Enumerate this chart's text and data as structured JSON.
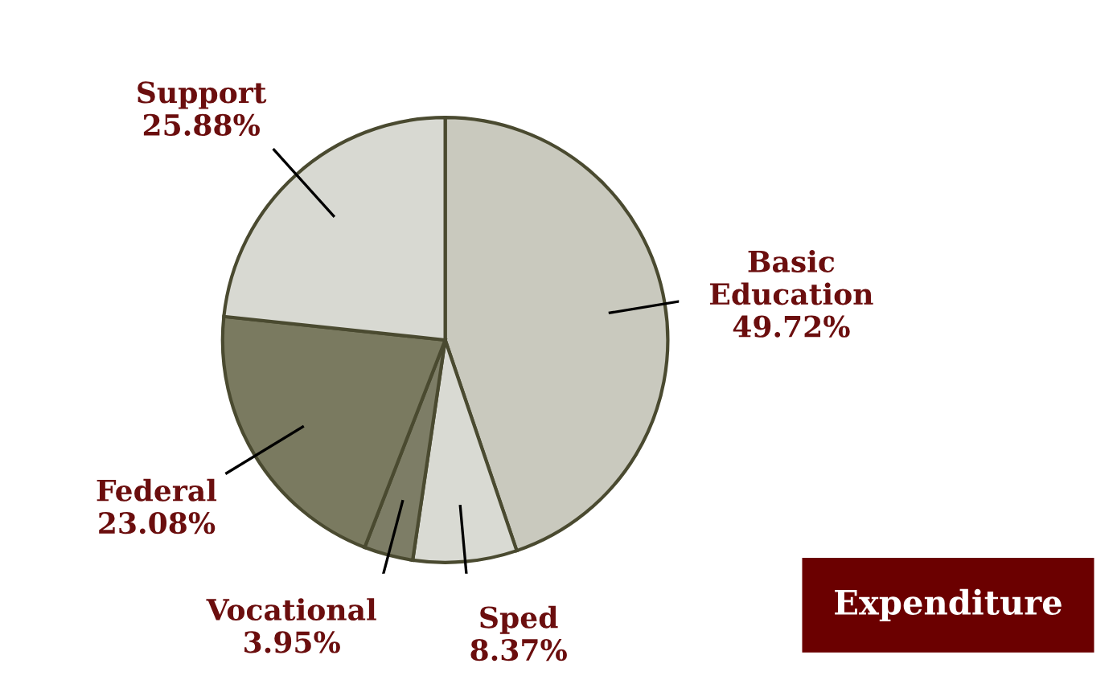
{
  "chart_data": {
    "type": "pie",
    "title": "Expenditure",
    "categories": [
      "Basic\nEducation",
      "Sped",
      "Vocational",
      "Federal",
      "Support"
    ],
    "values": [
      49.72,
      8.37,
      3.95,
      23.08,
      25.88
    ],
    "colors": [
      "#c9c9be",
      "#d9dad3",
      "#7d7d66",
      "#7a7a60",
      "#d8d9d2"
    ],
    "value_labels": [
      "49.72%",
      "8.37%",
      "3.95%",
      "23.08%",
      "25.88%"
    ]
  }
}
